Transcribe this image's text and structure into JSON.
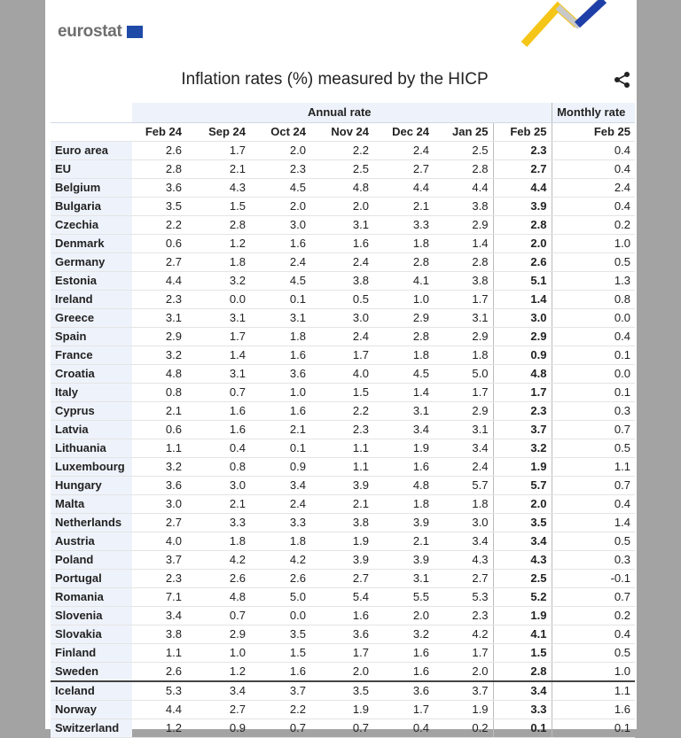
{
  "header": {
    "logo": "eurostat",
    "title": "Inflation rates (%) measured by the HICP"
  },
  "table": {
    "groups": [
      "Annual rate",
      "Monthly rate"
    ],
    "columns": [
      "Feb 24",
      "Sep 24",
      "Oct 24",
      "Nov 24",
      "Dec 24",
      "Jan 25",
      "Feb 25",
      "Feb 25"
    ],
    "rows": [
      [
        "Euro area",
        "2.6",
        "1.7",
        "2.0",
        "2.2",
        "2.4",
        "2.5",
        "2.3",
        "0.4"
      ],
      [
        "EU",
        "2.8",
        "2.1",
        "2.3",
        "2.5",
        "2.7",
        "2.8",
        "2.7",
        "0.4"
      ],
      [
        "Belgium",
        "3.6",
        "4.3",
        "4.5",
        "4.8",
        "4.4",
        "4.4",
        "4.4",
        "2.4"
      ],
      [
        "Bulgaria",
        "3.5",
        "1.5",
        "2.0",
        "2.0",
        "2.1",
        "3.8",
        "3.9",
        "0.4"
      ],
      [
        "Czechia",
        "2.2",
        "2.8",
        "3.0",
        "3.1",
        "3.3",
        "2.9",
        "2.8",
        "0.2"
      ],
      [
        "Denmark",
        "0.6",
        "1.2",
        "1.6",
        "1.6",
        "1.8",
        "1.4",
        "2.0",
        "1.0"
      ],
      [
        "Germany",
        "2.7",
        "1.8",
        "2.4",
        "2.4",
        "2.8",
        "2.8",
        "2.6",
        "0.5"
      ],
      [
        "Estonia",
        "4.4",
        "3.2",
        "4.5",
        "3.8",
        "4.1",
        "3.8",
        "5.1",
        "1.3"
      ],
      [
        "Ireland",
        "2.3",
        "0.0",
        "0.1",
        "0.5",
        "1.0",
        "1.7",
        "1.4",
        "0.8"
      ],
      [
        "Greece",
        "3.1",
        "3.1",
        "3.1",
        "3.0",
        "2.9",
        "3.1",
        "3.0",
        "0.0"
      ],
      [
        "Spain",
        "2.9",
        "1.7",
        "1.8",
        "2.4",
        "2.8",
        "2.9",
        "2.9",
        "0.4"
      ],
      [
        "France",
        "3.2",
        "1.4",
        "1.6",
        "1.7",
        "1.8",
        "1.8",
        "0.9",
        "0.1"
      ],
      [
        "Croatia",
        "4.8",
        "3.1",
        "3.6",
        "4.0",
        "4.5",
        "5.0",
        "4.8",
        "0.0"
      ],
      [
        "Italy",
        "0.8",
        "0.7",
        "1.0",
        "1.5",
        "1.4",
        "1.7",
        "1.7",
        "0.1"
      ],
      [
        "Cyprus",
        "2.1",
        "1.6",
        "1.6",
        "2.2",
        "3.1",
        "2.9",
        "2.3",
        "0.3"
      ],
      [
        "Latvia",
        "0.6",
        "1.6",
        "2.1",
        "2.3",
        "3.4",
        "3.1",
        "3.7",
        "0.7"
      ],
      [
        "Lithuania",
        "1.1",
        "0.4",
        "0.1",
        "1.1",
        "1.9",
        "3.4",
        "3.2",
        "0.5"
      ],
      [
        "Luxembourg",
        "3.2",
        "0.8",
        "0.9",
        "1.1",
        "1.6",
        "2.4",
        "1.9",
        "1.1"
      ],
      [
        "Hungary",
        "3.6",
        "3.0",
        "3.4",
        "3.9",
        "4.8",
        "5.7",
        "5.7",
        "0.7"
      ],
      [
        "Malta",
        "3.0",
        "2.1",
        "2.4",
        "2.1",
        "1.8",
        "1.8",
        "2.0",
        "0.4"
      ],
      [
        "Netherlands",
        "2.7",
        "3.3",
        "3.3",
        "3.8",
        "3.9",
        "3.0",
        "3.5",
        "1.4"
      ],
      [
        "Austria",
        "4.0",
        "1.8",
        "1.8",
        "1.9",
        "2.1",
        "3.4",
        "3.4",
        "0.5"
      ],
      [
        "Poland",
        "3.7",
        "4.2",
        "4.2",
        "3.9",
        "3.9",
        "4.3",
        "4.3",
        "0.3"
      ],
      [
        "Portugal",
        "2.3",
        "2.6",
        "2.6",
        "2.7",
        "3.1",
        "2.7",
        "2.5",
        "-0.1"
      ],
      [
        "Romania",
        "7.1",
        "4.8",
        "5.0",
        "5.4",
        "5.5",
        "5.3",
        "5.2",
        "0.7"
      ],
      [
        "Slovenia",
        "3.4",
        "0.7",
        "0.0",
        "1.6",
        "2.0",
        "2.3",
        "1.9",
        "0.2"
      ],
      [
        "Slovakia",
        "3.8",
        "2.9",
        "3.5",
        "3.6",
        "3.2",
        "4.2",
        "4.1",
        "0.4"
      ],
      [
        "Finland",
        "1.1",
        "1.0",
        "1.5",
        "1.7",
        "1.6",
        "1.7",
        "1.5",
        "0.5"
      ],
      [
        "Sweden",
        "2.6",
        "1.2",
        "1.6",
        "2.0",
        "1.6",
        "2.0",
        "2.8",
        "1.0"
      ],
      [
        "Iceland",
        "5.3",
        "3.4",
        "3.7",
        "3.5",
        "3.6",
        "3.7",
        "3.4",
        "1.1"
      ],
      [
        "Norway",
        "4.4",
        "2.7",
        "2.2",
        "1.9",
        "1.7",
        "1.9",
        "3.3",
        "1.6"
      ],
      [
        "Switzerland",
        "1.2",
        "0.9",
        "0.7",
        "0.7",
        "0.4",
        "0.2",
        "0.1",
        "0.1"
      ]
    ]
  }
}
